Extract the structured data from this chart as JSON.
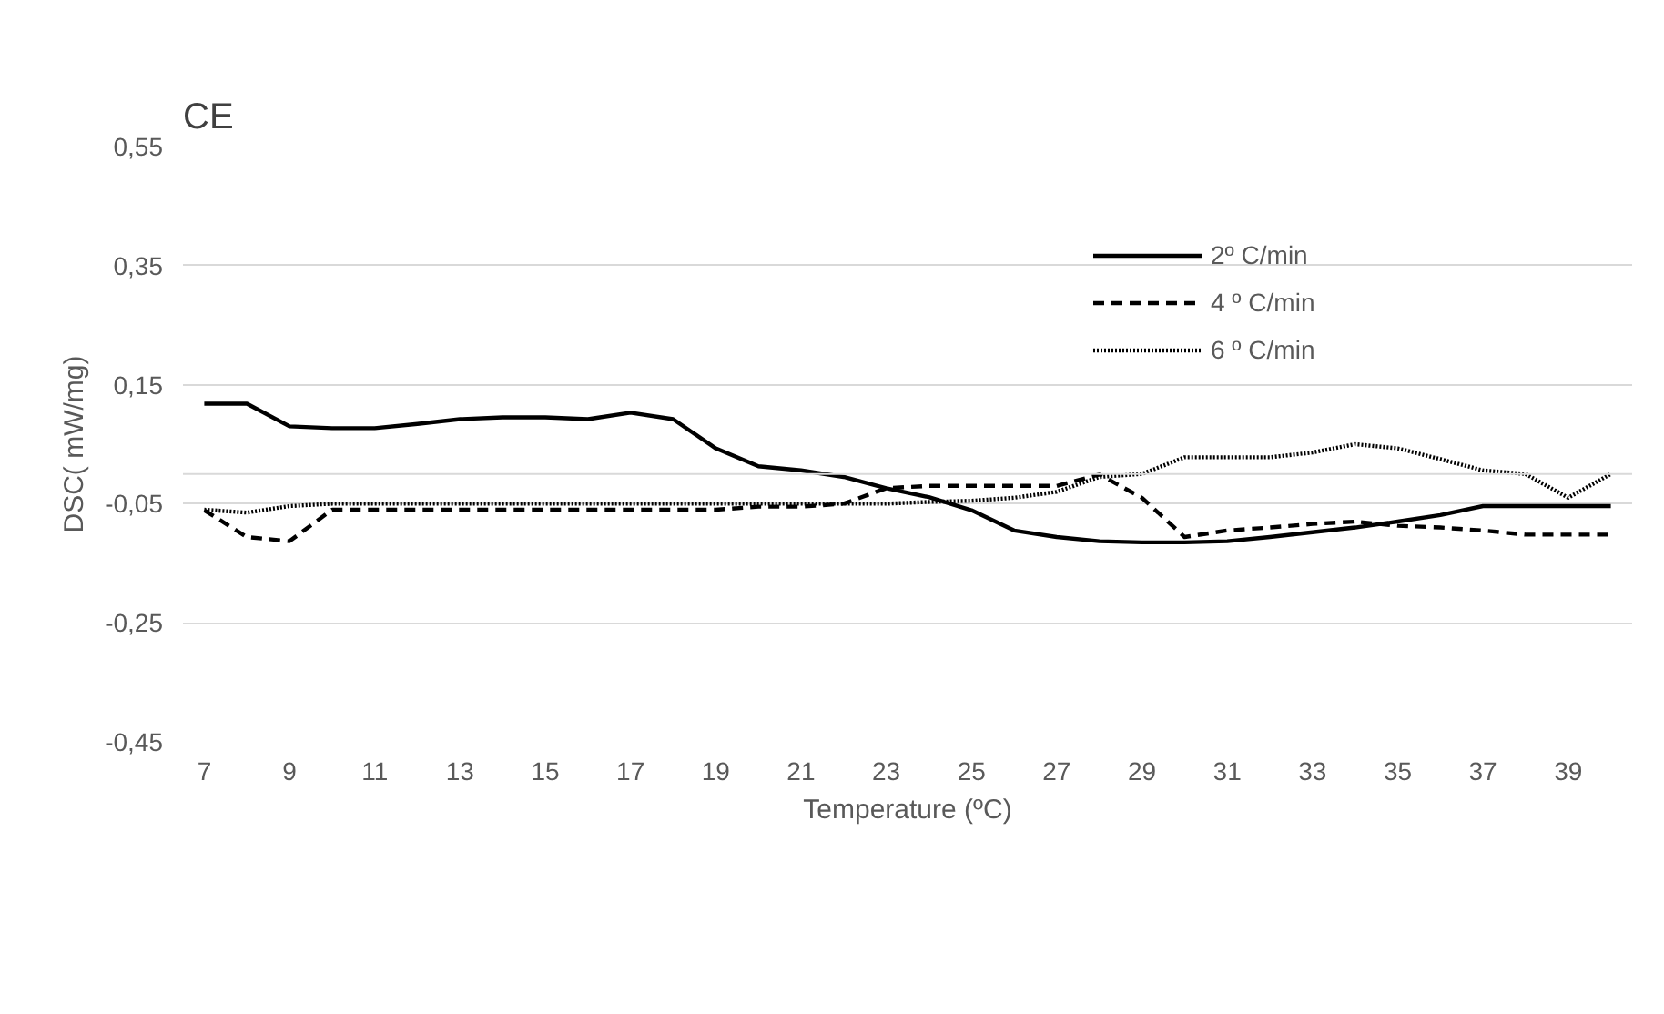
{
  "chart_data": {
    "type": "line",
    "title": "CE",
    "xlabel": "Temperature (ºC)",
    "ylabel": "DSC( mW/mg)",
    "x": [
      7,
      8,
      9,
      10,
      11,
      12,
      13,
      14,
      15,
      16,
      17,
      18,
      19,
      20,
      21,
      22,
      23,
      24,
      25,
      26,
      27,
      28,
      29,
      30,
      31,
      32,
      33,
      34,
      35,
      36,
      37,
      38,
      39,
      40
    ],
    "series": [
      {
        "name": "2º C/min",
        "color": "#000000",
        "line_style": "solid",
        "values": [
          0.118,
          0.118,
          0.08,
          0.077,
          0.077,
          0.084,
          0.092,
          0.095,
          0.095,
          0.092,
          0.103,
          0.092,
          0.043,
          0.013,
          0.006,
          -0.005,
          -0.024,
          -0.039,
          -0.061,
          -0.095,
          -0.106,
          -0.113,
          -0.115,
          -0.115,
          -0.113,
          -0.106,
          -0.098,
          -0.09,
          -0.08,
          -0.069,
          -0.054,
          -0.054,
          -0.054,
          -0.054
        ]
      },
      {
        "name": "4 º C/min",
        "color": "#000000",
        "line_style": "dashed",
        "values": [
          -0.061,
          -0.106,
          -0.113,
          -0.06,
          -0.06,
          -0.06,
          -0.06,
          -0.06,
          -0.06,
          -0.06,
          -0.06,
          -0.06,
          -0.06,
          -0.055,
          -0.055,
          -0.05,
          -0.024,
          -0.02,
          -0.02,
          -0.02,
          -0.02,
          -0.001,
          -0.04,
          -0.106,
          -0.095,
          -0.09,
          -0.084,
          -0.08,
          -0.087,
          -0.09,
          -0.095,
          -0.102,
          -0.102,
          -0.102
        ]
      },
      {
        "name": "6 º C/min",
        "color": "#000000",
        "line_style": "dotted",
        "values": [
          -0.06,
          -0.065,
          -0.054,
          -0.05,
          -0.05,
          -0.05,
          -0.05,
          -0.05,
          -0.05,
          -0.05,
          -0.05,
          -0.05,
          -0.05,
          -0.05,
          -0.05,
          -0.05,
          -0.05,
          -0.047,
          -0.045,
          -0.04,
          -0.03,
          -0.005,
          0,
          0.028,
          0.028,
          0.028,
          0.036,
          0.05,
          0.043,
          0.025,
          0.006,
          0,
          -0.04,
          0
        ]
      }
    ],
    "xlim": [
      6.5,
      40.5
    ],
    "xticks": [
      7,
      9,
      11,
      13,
      15,
      17,
      19,
      21,
      23,
      25,
      27,
      29,
      31,
      33,
      35,
      37,
      39
    ],
    "ylim": [
      -0.45,
      0.55
    ],
    "yticks": [
      {
        "value": -0.45,
        "label": "-0,45"
      },
      {
        "value": -0.25,
        "label": "-0,25"
      },
      {
        "value": -0.05,
        "label": "-0,05"
      },
      {
        "value": 0.15,
        "label": "0,15"
      },
      {
        "value": 0.35,
        "label": "0,35"
      },
      {
        "value": 0.55,
        "label": "0,55"
      }
    ],
    "ref_lines": [
      {
        "axis": "y",
        "value": 0,
        "color": "#d9d9d9"
      }
    ],
    "grid": "y",
    "legend": "top right",
    "marker": "none"
  }
}
